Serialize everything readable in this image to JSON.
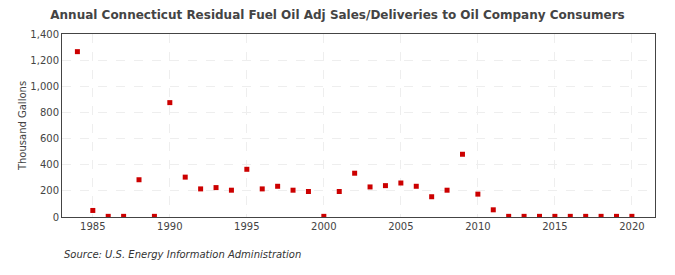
{
  "chart_data": {
    "type": "scatter",
    "title": "Annual Connecticut Residual Fuel Oil Adj Sales/Deliveries to Oil Company Consumers",
    "ylabel": "Thousand Gallons",
    "annotations": [
      "Source: U.S. Energy Information Administration"
    ],
    "x": [
      1984,
      1985,
      1986,
      1987,
      1988,
      1989,
      1990,
      1991,
      1992,
      1993,
      1994,
      1995,
      1996,
      1997,
      1998,
      1999,
      2000,
      2001,
      2002,
      2003,
      2004,
      2005,
      2006,
      2007,
      2008,
      2009,
      2010,
      2011,
      2012,
      2013,
      2014,
      2015,
      2016,
      2017,
      2018,
      2019,
      2020
    ],
    "values": [
      1265,
      50,
      5,
      5,
      285,
      5,
      875,
      305,
      215,
      225,
      205,
      365,
      215,
      235,
      205,
      195,
      5,
      195,
      335,
      230,
      240,
      260,
      235,
      155,
      205,
      480,
      175,
      55,
      5,
      5,
      5,
      5,
      5,
      5,
      5,
      5,
      5
    ],
    "color": "#cc0000",
    "marker": "square",
    "xlim": [
      1983.0,
      2021.5
    ],
    "xticks": [
      1985,
      1990,
      1995,
      2000,
      2005,
      2010,
      2015,
      2020
    ],
    "ylim": [
      0,
      1400
    ],
    "yticks": [
      0,
      200,
      400,
      600,
      800,
      {
        "value": 1000,
        "label": "1,000"
      },
      {
        "value": 1200,
        "label": "1,200"
      },
      {
        "value": 1400,
        "label": "1,400"
      }
    ],
    "grid": true
  }
}
